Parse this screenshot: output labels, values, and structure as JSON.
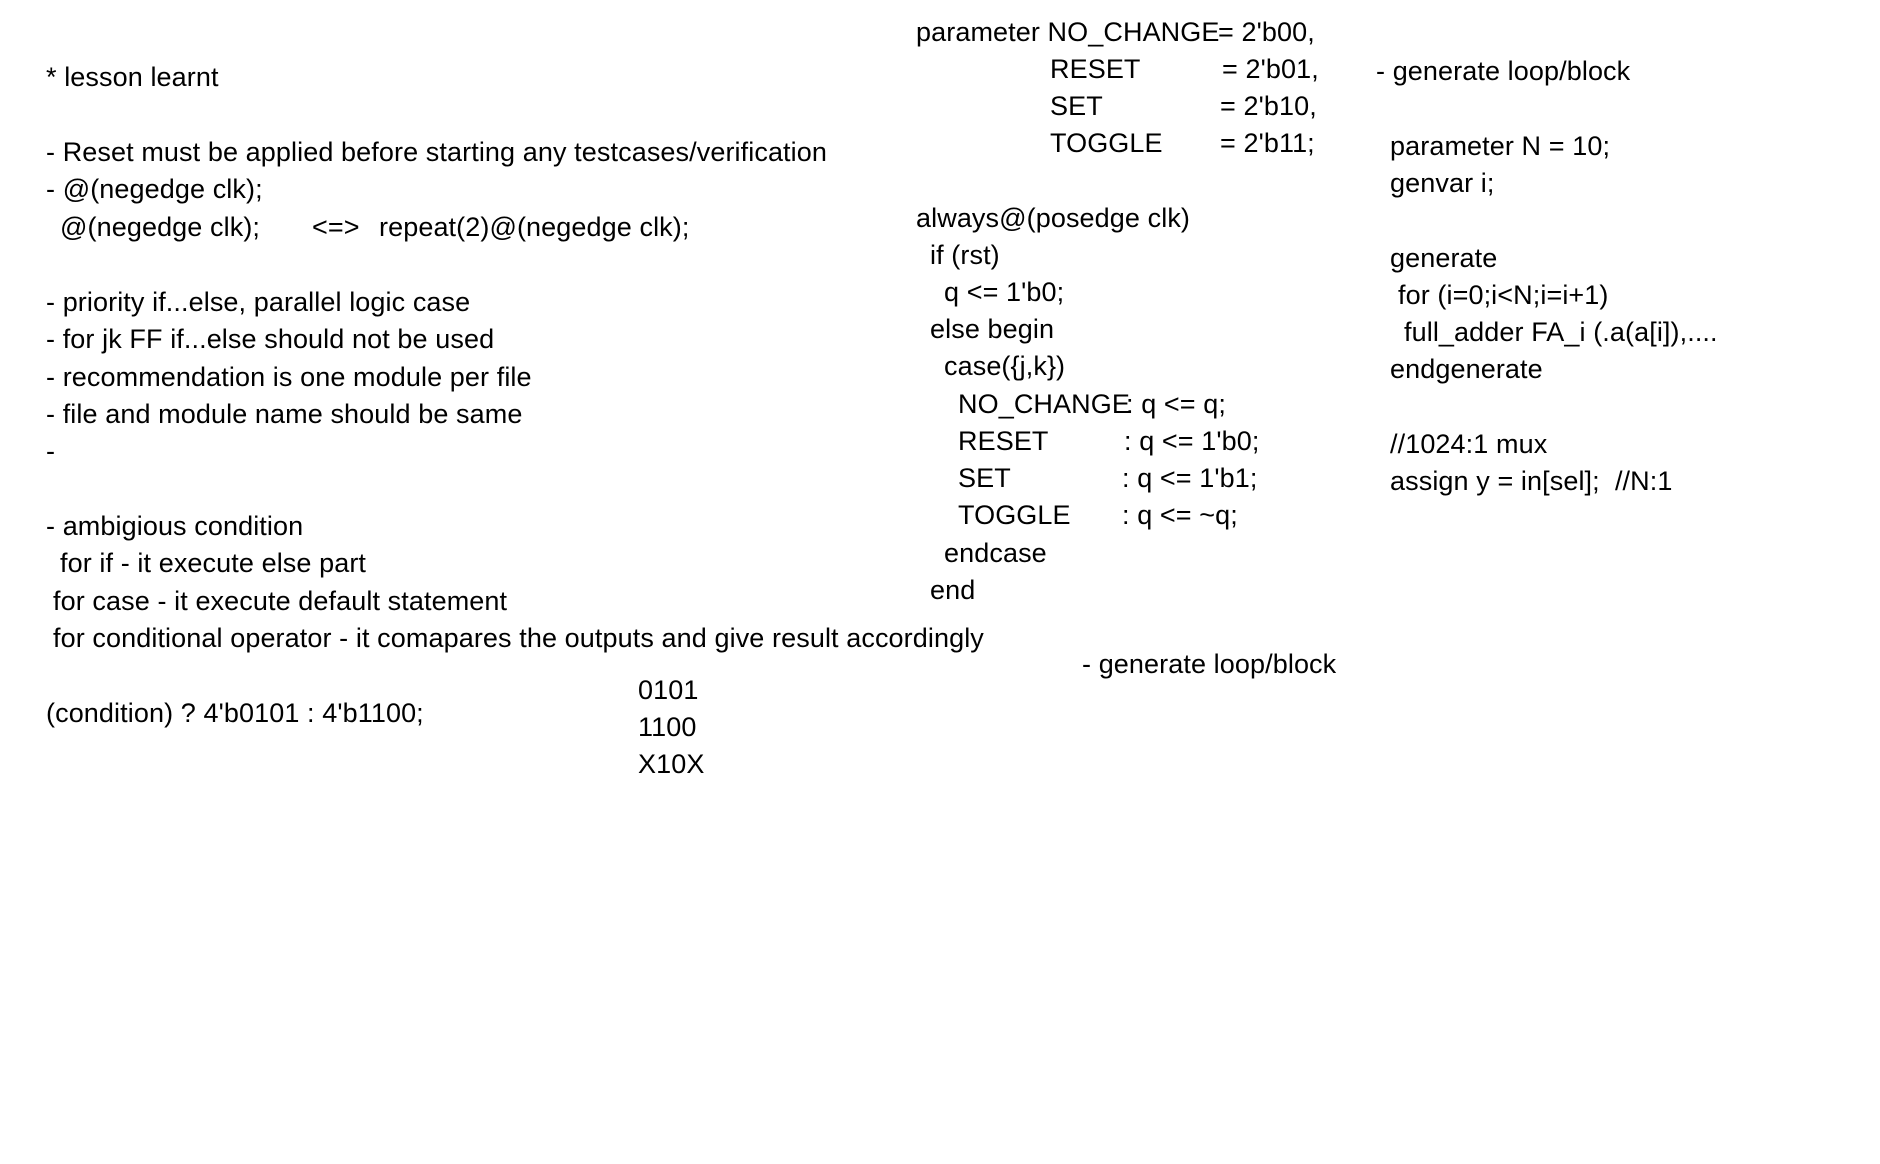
{
  "left_notes": {
    "heading": "* lesson learnt",
    "reset_note": "- Reset must be applied before starting any testcases/verification",
    "negedge_1": "- @(negedge clk);",
    "negedge_2": "@(negedge clk);",
    "equiv": "<=>",
    "repeat_stmt": "repeat(2)@(negedge clk);",
    "priority": "- priority if...else, parallel logic case",
    "jkff": "- for jk FF if...else should not be used",
    "module_per_file": "- recommendation is one module per file",
    "file_module_name": "- file and module name should be same",
    "dash": "-",
    "ambiguous": "- ambigious condition",
    "for_if": "for if - it execute else part",
    "for_case": "for case - it execute default statement",
    "for_cond": "for conditional operator - it comapares the outputs and give result accordingly",
    "cond_expr": "(condition) ? 4'b0101 : 4'b1100;",
    "val_1": "0101",
    "val_2": "1100",
    "val_3": "X10X"
  },
  "middle_code": {
    "param_1_name": "parameter NO_CHANGE",
    "param_1_val": "= 2'b00,",
    "param_2_name": "RESET",
    "param_2_val": "= 2'b01,",
    "param_3_name": "SET",
    "param_3_val": "= 2'b10,",
    "param_4_name": "TOGGLE",
    "param_4_val": "= 2'b11;",
    "always": "always@(posedge clk)",
    "if_rst": "if (rst)",
    "q_reset": "q <= 1'b0;",
    "else_begin": "else begin",
    "case": "case({j,k})",
    "c1_name": "NO_CHANGE",
    "c1_val": ": q <= q;",
    "c2_name": "RESET",
    "c2_val": ": q <= 1'b0;",
    "c3_name": "SET",
    "c3_val": ": q <= 1'b1;",
    "c4_name": "TOGGLE",
    "c4_val": ": q <= ~q;",
    "endcase": "endcase",
    "end": "end",
    "generate_note": "- generate loop/block"
  },
  "right_code": {
    "heading": "- generate loop/block",
    "param_n": "parameter N = 10;",
    "genvar": "genvar i;",
    "generate": "generate",
    "for_loop": "for (i=0;i<N;i=i+1)",
    "full_adder": "full_adder FA_i (.a(a[i]),....",
    "endgenerate": "endgenerate",
    "mux_comment": "//1024:1 mux",
    "assign": "assign y = in[sel];  //N:1"
  }
}
